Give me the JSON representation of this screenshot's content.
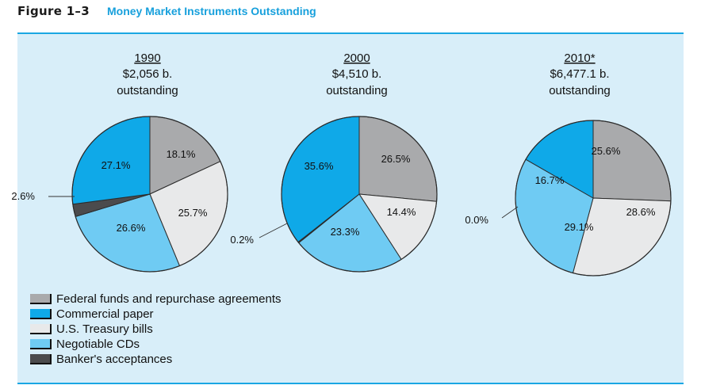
{
  "figure": {
    "label": "Figure 1–3",
    "title": "Money Market Instruments Outstanding"
  },
  "colors": {
    "federal_funds": "#a9aaac",
    "commercial_paper": "#0fa9e8",
    "treasury_bills": "#e8e9ea",
    "negotiable_cds": "#6fcbf3",
    "bankers_acceptances": "#4b4b4d"
  },
  "chart_data": [
    {
      "type": "pie",
      "year": "1990",
      "amount": "$2,056 b.",
      "note": "outstanding",
      "slices": [
        {
          "name": "Federal funds and repurchase agreements",
          "value": 18.1,
          "label": "18.1%"
        },
        {
          "name": "U.S. Treasury bills",
          "value": 25.7,
          "label": "25.7%"
        },
        {
          "name": "Negotiable CDs",
          "value": 26.6,
          "label": "26.6%"
        },
        {
          "name": "Banker's acceptances",
          "value": 2.6,
          "label": "2.6%"
        },
        {
          "name": "Commercial paper",
          "value": 27.1,
          "label": "27.1%"
        }
      ]
    },
    {
      "type": "pie",
      "year": "2000",
      "amount": "$4,510 b.",
      "note": "outstanding",
      "slices": [
        {
          "name": "Federal funds and repurchase agreements",
          "value": 26.5,
          "label": "26.5%"
        },
        {
          "name": "U.S. Treasury bills",
          "value": 14.4,
          "label": "14.4%"
        },
        {
          "name": "Negotiable CDs",
          "value": 23.3,
          "label": "23.3%"
        },
        {
          "name": "Banker's acceptances",
          "value": 0.2,
          "label": "0.2%"
        },
        {
          "name": "Commercial paper",
          "value": 35.6,
          "label": "35.6%"
        }
      ]
    },
    {
      "type": "pie",
      "year": "2010*",
      "amount": "$6,477.1 b.",
      "note": "outstanding",
      "slices": [
        {
          "name": "Federal funds and repurchase agreements",
          "value": 25.6,
          "label": "25.6%"
        },
        {
          "name": "U.S. Treasury bills",
          "value": 28.6,
          "label": "28.6%"
        },
        {
          "name": "Negotiable CDs",
          "value": 29.1,
          "label": "29.1%"
        },
        {
          "name": "Banker's acceptances",
          "value": 0.0,
          "label": "0.0%"
        },
        {
          "name": "Commercial paper",
          "value": 16.7,
          "label": "16.7%"
        }
      ]
    }
  ],
  "legend": {
    "items": [
      {
        "label": "Federal funds and repurchase agreements",
        "color": "#a9aaac"
      },
      {
        "label": "Commercial paper",
        "color": "#0fa9e8"
      },
      {
        "label": "U.S. Treasury bills",
        "color": "#e8e9ea"
      },
      {
        "label": "Negotiable CDs",
        "color": "#6fcbf3"
      },
      {
        "label": "Banker's acceptances",
        "color": "#4b4b4d"
      }
    ]
  }
}
